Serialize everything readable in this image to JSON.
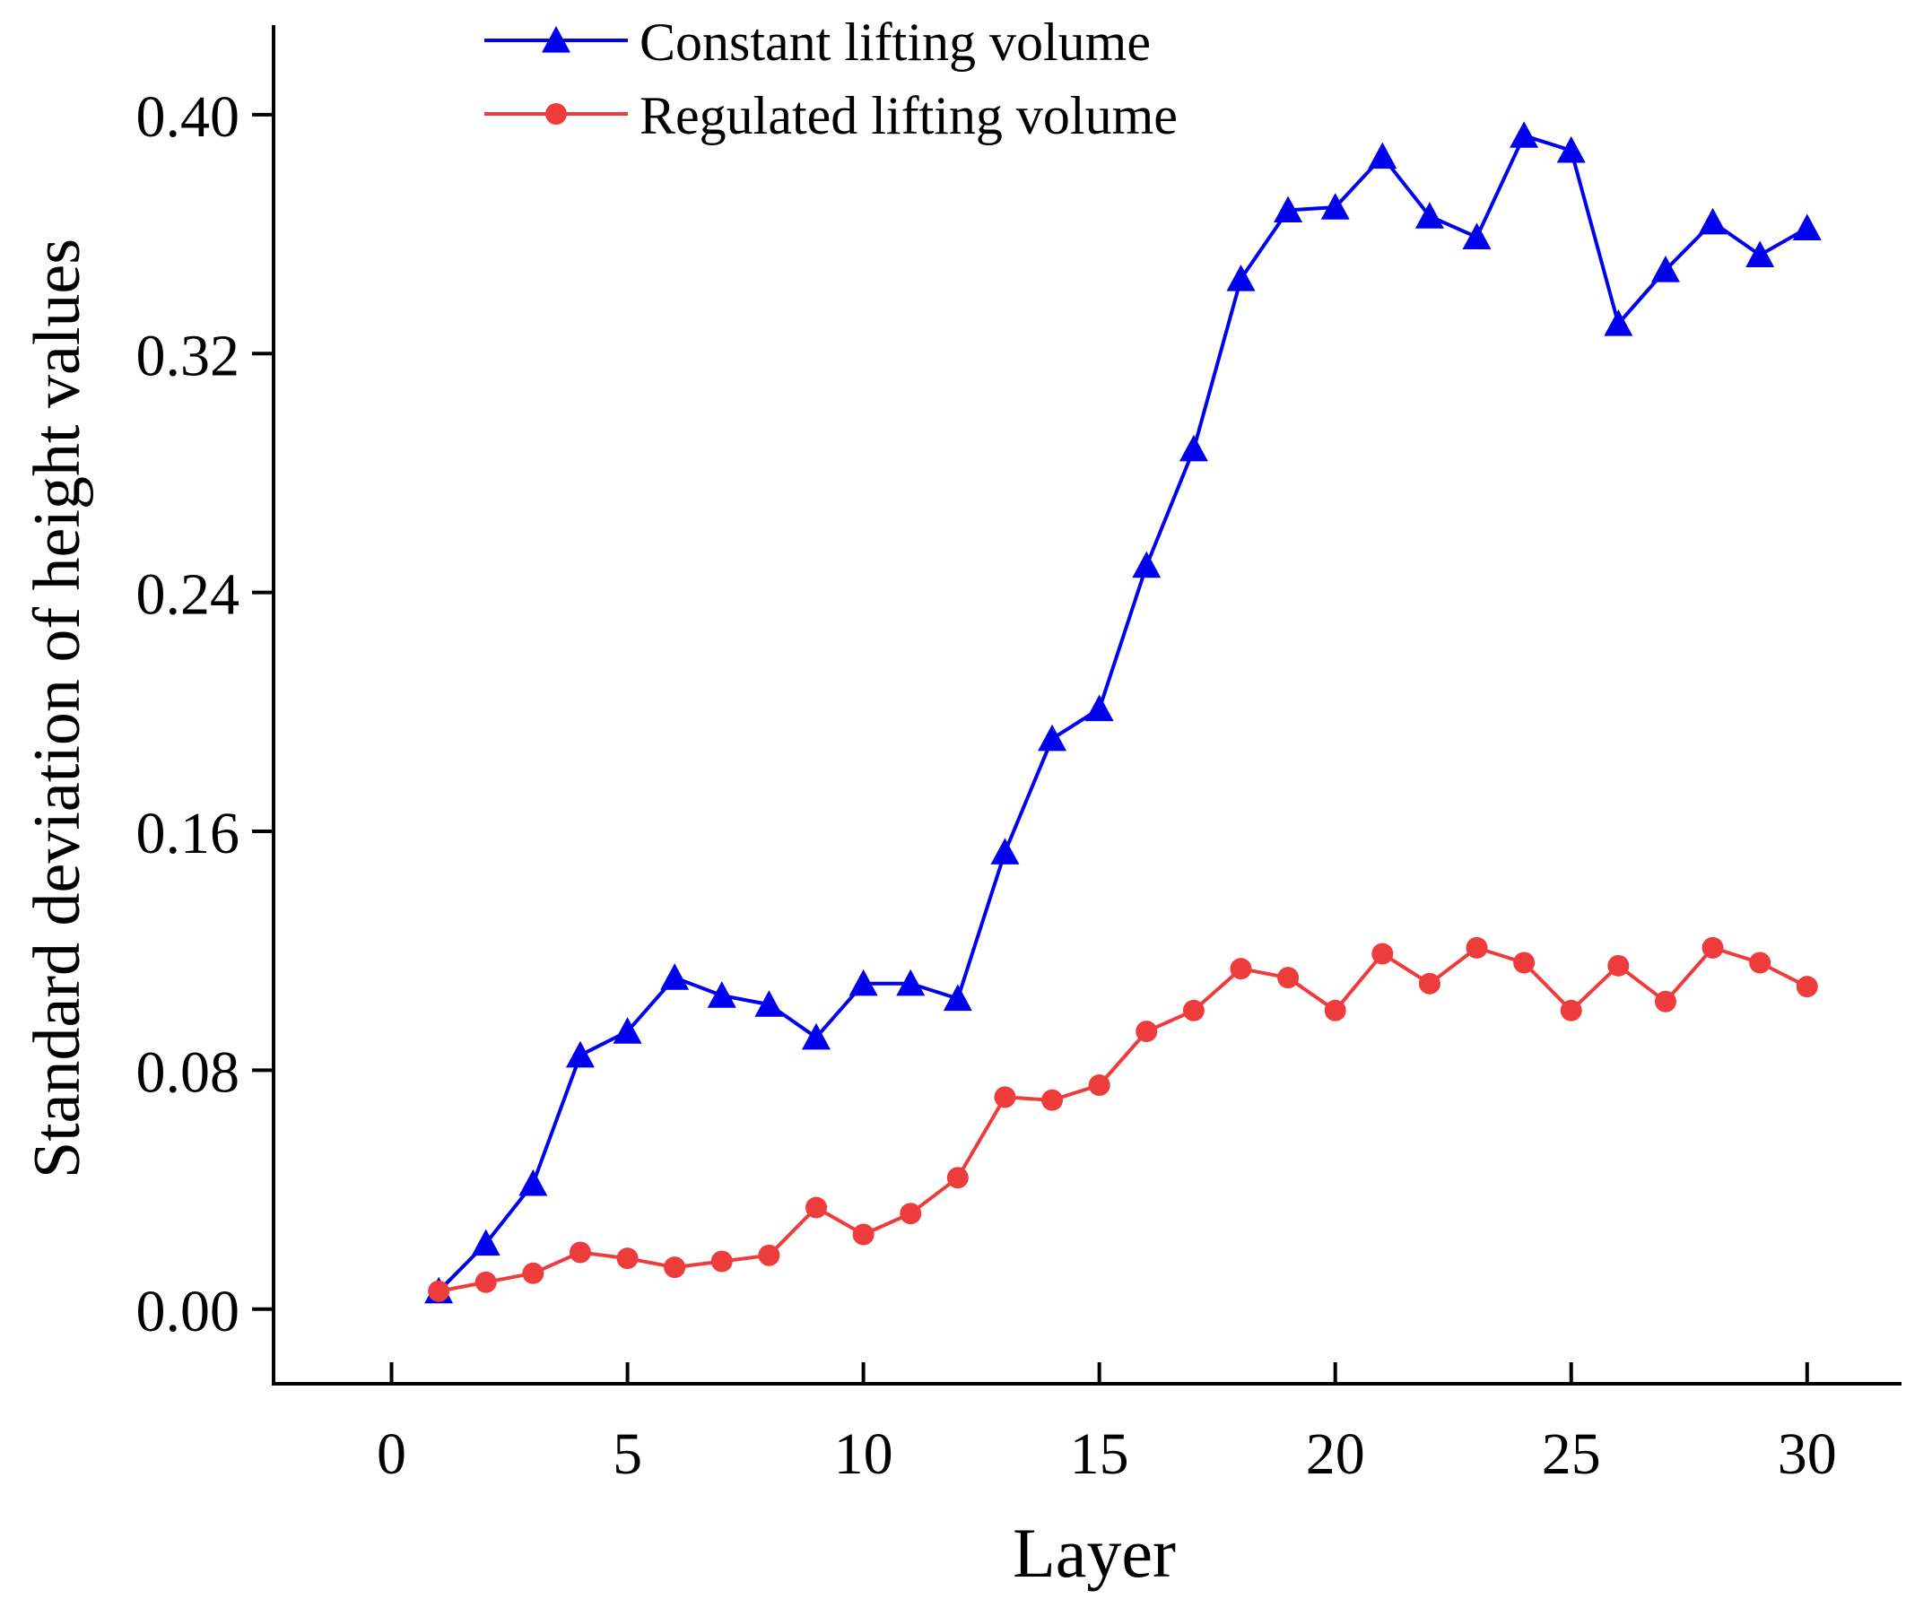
{
  "chart_data": {
    "type": "line",
    "title": "",
    "xlabel": "Layer",
    "ylabel": "Standard deviation of height values",
    "xlim": [
      -2.5,
      32
    ],
    "ylim": [
      -0.025,
      0.43
    ],
    "xticks": [
      0,
      5,
      10,
      15,
      20,
      25,
      30
    ],
    "xtick_labels": [
      "0",
      "5",
      "10",
      "15",
      "20",
      "25",
      "30"
    ],
    "yticks": [
      0.0,
      0.08,
      0.16,
      0.24,
      0.32,
      0.4
    ],
    "ytick_labels": [
      "0.00",
      "0.08",
      "0.16",
      "0.24",
      "0.32",
      "0.40"
    ],
    "grid": false,
    "legend_position": "top-center",
    "x": [
      1,
      2,
      3,
      4,
      5,
      6,
      7,
      8,
      9,
      10,
      11,
      12,
      13,
      14,
      15,
      16,
      17,
      18,
      19,
      20,
      21,
      22,
      23,
      24,
      25,
      26,
      27,
      28,
      29,
      30
    ],
    "series": [
      {
        "name": "Constant lifting volume",
        "color": "#0000ee",
        "marker": "triangle",
        "values": [
          0.006,
          0.022,
          0.042,
          0.085,
          0.093,
          0.111,
          0.105,
          0.102,
          0.091,
          0.109,
          0.109,
          0.104,
          0.153,
          0.191,
          0.201,
          0.249,
          0.288,
          0.345,
          0.368,
          0.369,
          0.386,
          0.366,
          0.359,
          0.393,
          0.388,
          0.33,
          0.348,
          0.364,
          0.353,
          0.362
        ]
      },
      {
        "name": "Regulated lifting volume",
        "color": "#ee3b3b",
        "marker": "circle",
        "values": [
          0.006,
          0.009,
          0.012,
          0.019,
          0.017,
          0.014,
          0.016,
          0.018,
          0.034,
          0.025,
          0.032,
          0.044,
          0.071,
          0.07,
          0.075,
          0.093,
          0.1,
          0.114,
          0.111,
          0.1,
          0.119,
          0.109,
          0.121,
          0.116,
          0.1,
          0.115,
          0.103,
          0.121,
          0.116,
          0.108
        ]
      }
    ]
  }
}
